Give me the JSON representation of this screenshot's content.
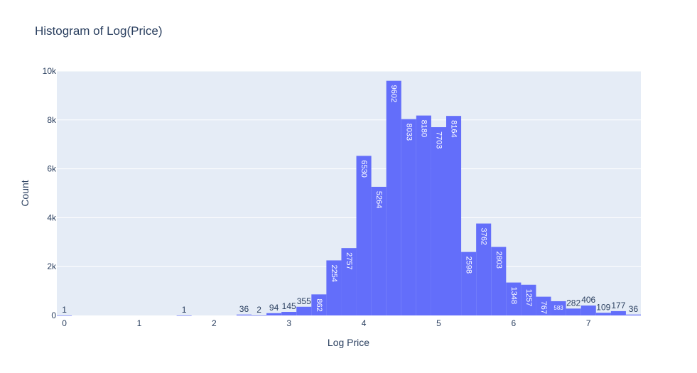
{
  "colors": {
    "bar": "#636efa",
    "plot_bg": "#e5ecf6",
    "grid": "#ffffff",
    "text": "#2a3f5f",
    "label_inside": "#ffffff"
  },
  "chart_data": {
    "type": "bar",
    "title": "Histogram of Log(Price)",
    "xlabel": "Log Price",
    "ylabel": "Count",
    "xlim": [
      -0.1,
      7.7
    ],
    "ylim": [
      0,
      10000
    ],
    "x_ticks": [
      "0",
      "1",
      "2",
      "3",
      "4",
      "5",
      "6",
      "7"
    ],
    "y_ticks": [
      "0",
      "2k",
      "4k",
      "6k",
      "8k",
      "10k"
    ],
    "bin_width": 0.2,
    "bins": [
      {
        "start": -0.1,
        "value": 1
      },
      {
        "start": 1.5,
        "value": 1
      },
      {
        "start": 2.3,
        "value": 36
      },
      {
        "start": 2.5,
        "value": 2
      },
      {
        "start": 2.7,
        "value": 94
      },
      {
        "start": 2.9,
        "value": 145
      },
      {
        "start": 3.1,
        "value": 355
      },
      {
        "start": 3.3,
        "value": 862
      },
      {
        "start": 3.5,
        "value": 2254
      },
      {
        "start": 3.7,
        "value": 2757
      },
      {
        "start": 3.9,
        "value": 6530
      },
      {
        "start": 4.1,
        "value": 5264
      },
      {
        "start": 4.3,
        "value": 9602
      },
      {
        "start": 4.5,
        "value": 8033
      },
      {
        "start": 4.7,
        "value": 8180
      },
      {
        "start": 4.9,
        "value": 7703
      },
      {
        "start": 5.1,
        "value": 8164
      },
      {
        "start": 5.3,
        "value": 2598
      },
      {
        "start": 5.5,
        "value": 3762
      },
      {
        "start": 5.7,
        "value": 2803
      },
      {
        "start": 5.9,
        "value": 1348
      },
      {
        "start": 6.1,
        "value": 1257
      },
      {
        "start": 6.3,
        "value": 767
      },
      {
        "start": 6.5,
        "value": 583
      },
      {
        "start": 6.7,
        "value": 282
      },
      {
        "start": 6.9,
        "value": 406
      },
      {
        "start": 7.1,
        "value": 109
      },
      {
        "start": 7.3,
        "value": 177
      },
      {
        "start": 7.5,
        "value": 36
      }
    ]
  }
}
